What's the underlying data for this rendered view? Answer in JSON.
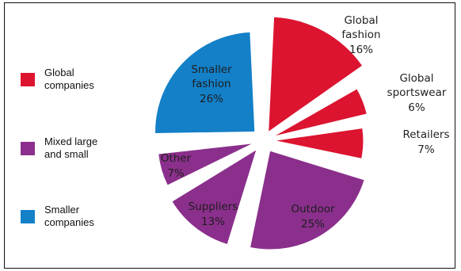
{
  "chart_data": {
    "type": "pie",
    "title": "",
    "slices": [
      {
        "label": "Global fashion",
        "value": 16,
        "value_label": "16%",
        "group": "Global companies",
        "color": "#dc1430"
      },
      {
        "label": "Global sportswear",
        "value": 6,
        "value_label": "6%",
        "group": "Global companies",
        "color": "#dc1430"
      },
      {
        "label": "Retailers",
        "value": 7,
        "value_label": "7%",
        "group": "Global companies",
        "color": "#dc1430"
      },
      {
        "label": "Outdoor",
        "value": 25,
        "value_label": "25%",
        "group": "Mixed large and small",
        "color": "#8b2f8c"
      },
      {
        "label": "Suppliers",
        "value": 13,
        "value_label": "13%",
        "group": "Mixed large and small",
        "color": "#8b2f8c"
      },
      {
        "label": "Other",
        "value": 7,
        "value_label": "7%",
        "group": "Mixed large and small",
        "color": "#8b2f8c"
      },
      {
        "label": "Smaller fashion",
        "value": 26,
        "value_label": "26%",
        "group": "Smaller companies",
        "color": "#1380c8"
      }
    ],
    "legend": [
      {
        "label": "Global\ncompanies",
        "color": "#dc1430"
      },
      {
        "label": "Mixed large\nand small",
        "color": "#8b2f8c"
      },
      {
        "label": "Smaller\ncompanies",
        "color": "#1380c8"
      }
    ],
    "legend_placement": "left",
    "exploded": true
  }
}
